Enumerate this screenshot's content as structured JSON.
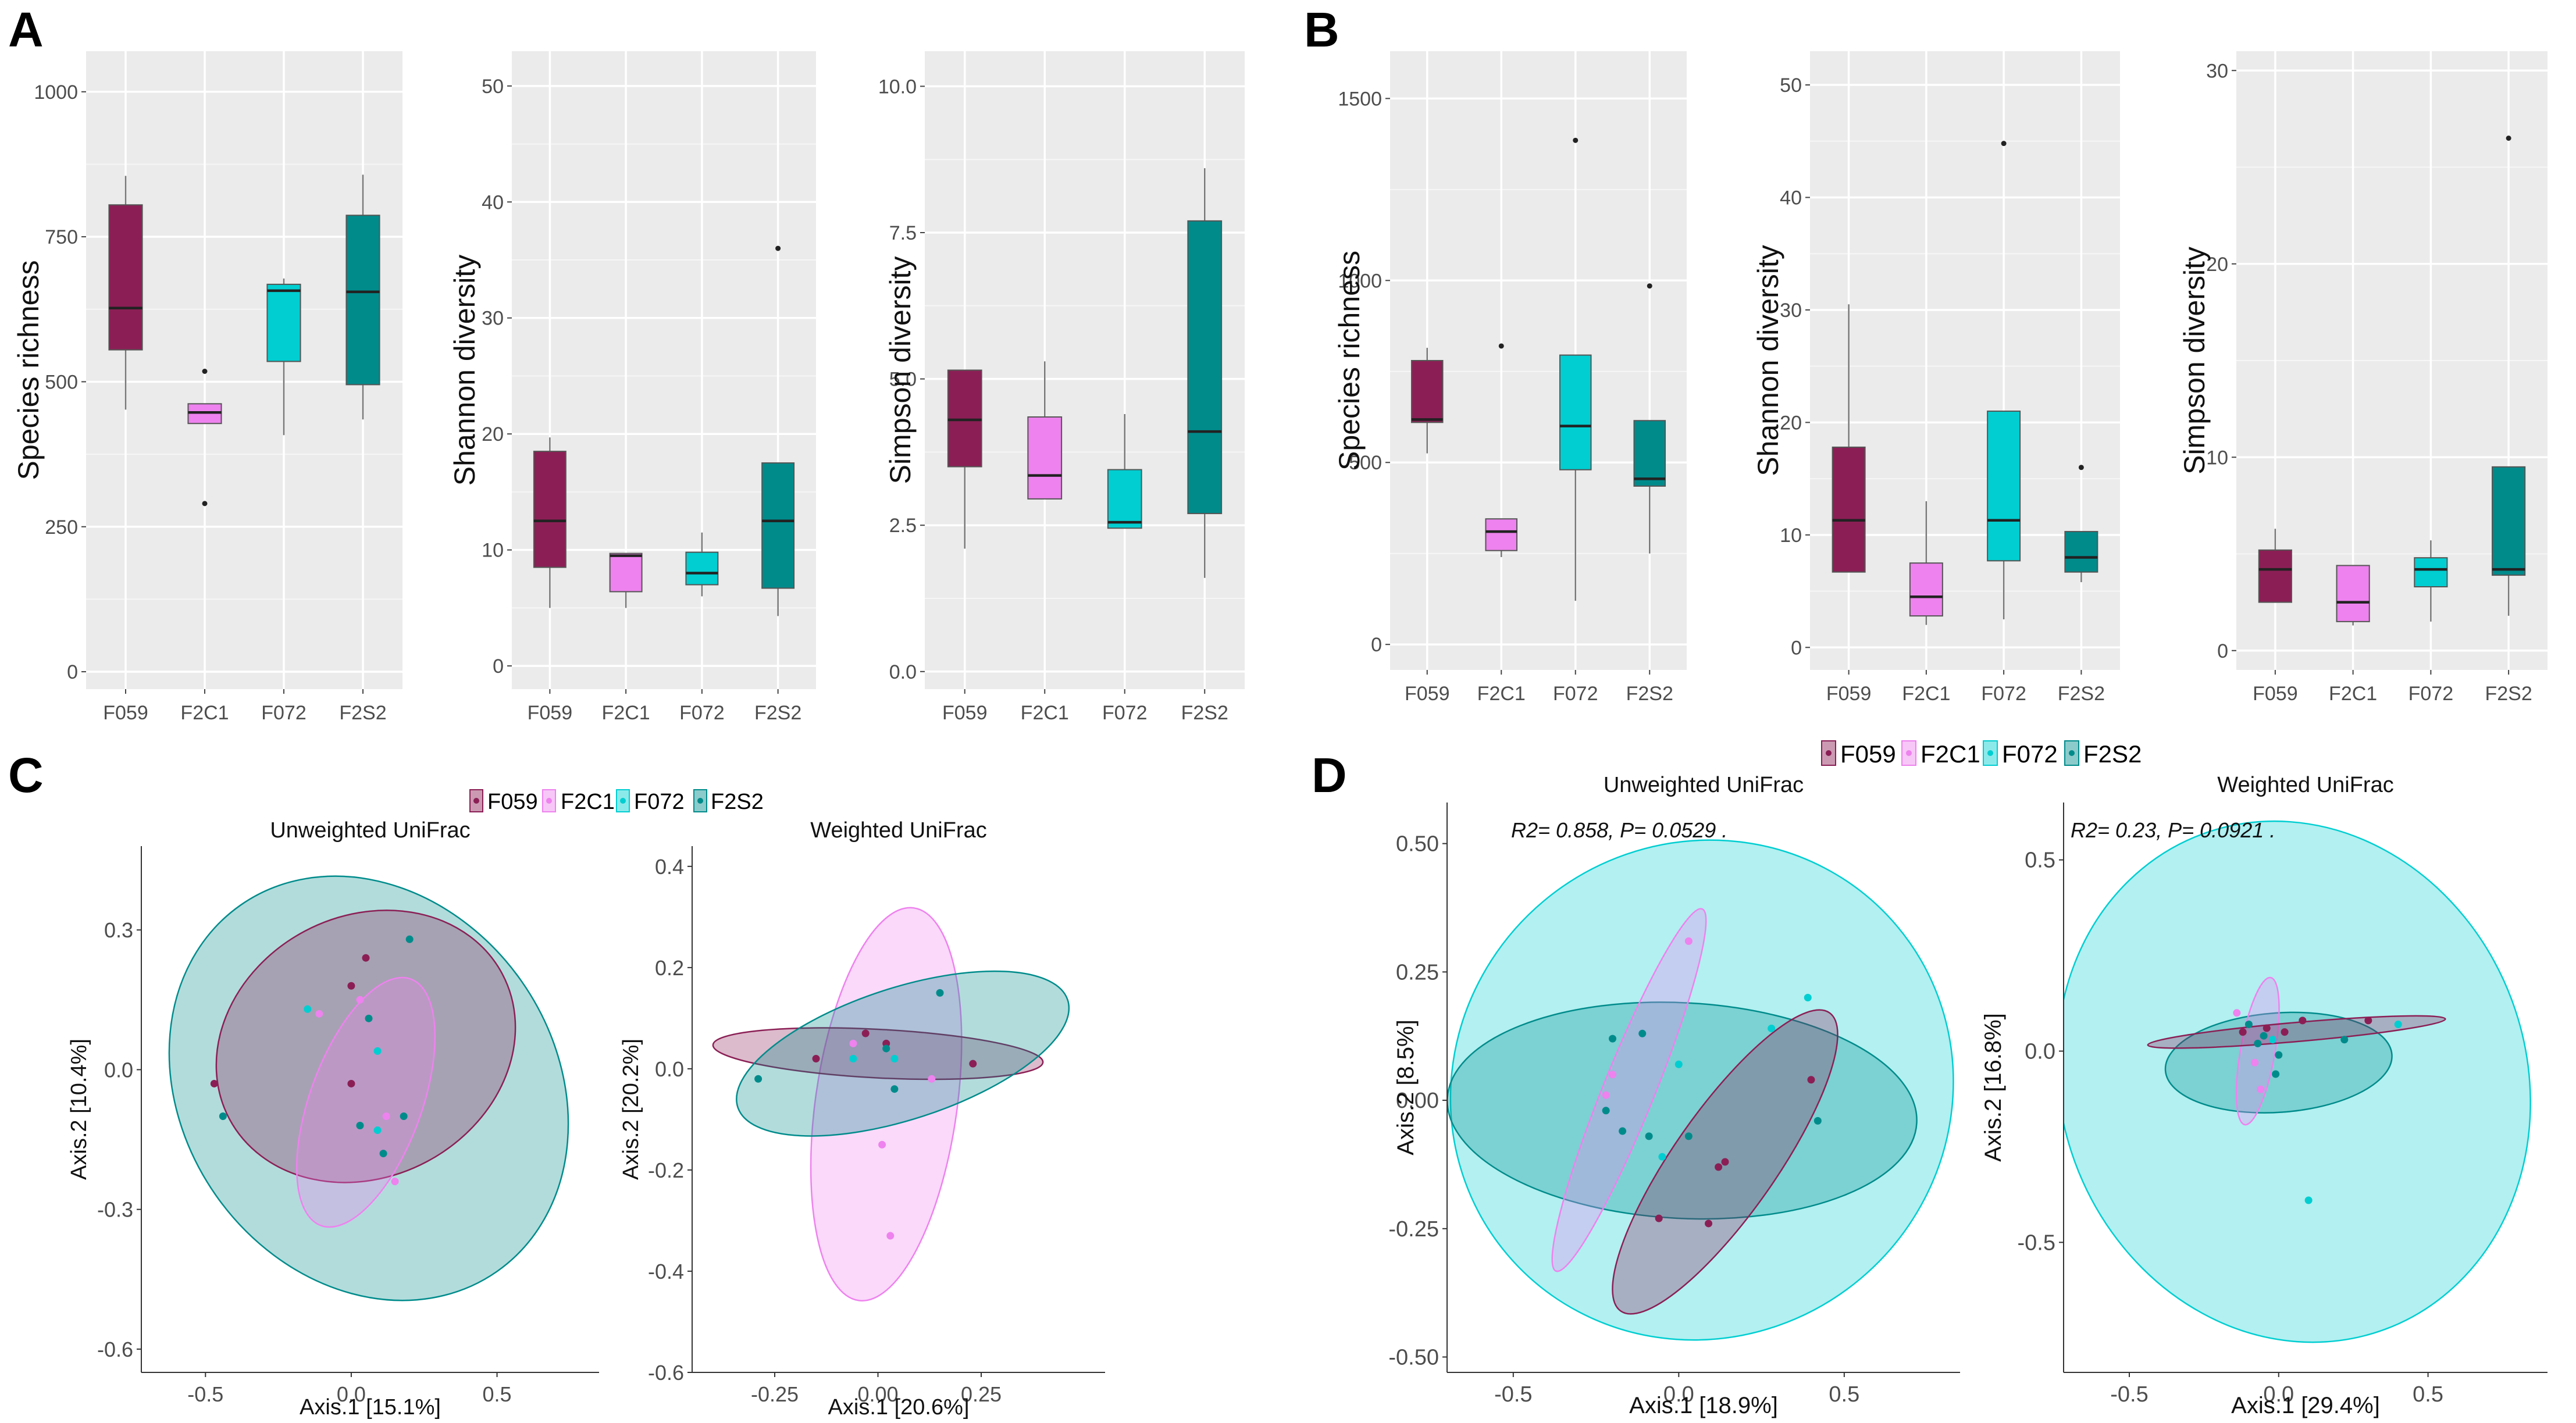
{
  "panel_letters": [
    "A",
    "B",
    "C",
    "D"
  ],
  "colors": {
    "F059": "#8b1f55",
    "F2C1": "#ee82ee",
    "F072": "#00ced1",
    "F2S2": "#008b8b"
  },
  "legend": {
    "C": [
      "F059",
      "F2C1",
      "F072",
      "F2S2"
    ],
    "D": [
      "F059",
      "F2C1",
      "F072",
      "F2S2"
    ]
  },
  "chart_data": [
    {
      "panel": "A",
      "type": "box",
      "title": "",
      "xlabel": "",
      "ylabel": "Species richness",
      "ylim": [
        -30,
        1070
      ],
      "yticks": [
        0,
        250,
        500,
        750,
        1000
      ],
      "ytick_labels": [
        "0",
        "250",
        "500",
        "750",
        "1000"
      ],
      "categories": [
        "F059",
        "F2C1",
        "F072",
        "F2S2"
      ],
      "boxes": [
        {
          "q1": 555,
          "median": 627,
          "q3": 805,
          "low": 452,
          "high": 855,
          "outliers": []
        },
        {
          "q1": 428,
          "median": 447,
          "q3": 462,
          "low": 428,
          "high": 462,
          "outliers": [
            518,
            290
          ]
        },
        {
          "q1": 535,
          "median": 657,
          "q3": 668,
          "low": 408,
          "high": 678,
          "outliers": []
        },
        {
          "q1": 495,
          "median": 655,
          "q3": 787,
          "low": 435,
          "high": 857,
          "outliers": []
        }
      ]
    },
    {
      "panel": "A",
      "type": "box",
      "title": "",
      "xlabel": "",
      "ylabel": "Shannon diversity",
      "ylim": [
        -2,
        53
      ],
      "yticks": [
        0,
        10,
        20,
        30,
        40,
        50
      ],
      "ytick_labels": [
        "0",
        "10",
        "20",
        "30",
        "40",
        "50"
      ],
      "categories": [
        "F059",
        "F2C1",
        "F072",
        "F2S2"
      ],
      "boxes": [
        {
          "q1": 8.5,
          "median": 12.5,
          "q3": 18.5,
          "low": 5,
          "high": 19.7,
          "outliers": []
        },
        {
          "q1": 6.4,
          "median": 9.5,
          "q3": 9.7,
          "low": 5,
          "high": 9.7,
          "outliers": []
        },
        {
          "q1": 7,
          "median": 8,
          "q3": 9.8,
          "low": 6,
          "high": 11.5,
          "outliers": []
        },
        {
          "q1": 6.7,
          "median": 12.5,
          "q3": 17.5,
          "low": 4.3,
          "high": 17.5,
          "outliers": [
            36
          ]
        }
      ]
    },
    {
      "panel": "A",
      "type": "box",
      "title": "",
      "xlabel": "",
      "ylabel": "Simpson diversity",
      "ylim": [
        -0.3,
        10.6
      ],
      "yticks": [
        0,
        2.5,
        5,
        7.5,
        10
      ],
      "ytick_labels": [
        "0.0",
        "2.5",
        "5.0",
        "7.5",
        "10.0"
      ],
      "categories": [
        "F059",
        "F2C1",
        "F072",
        "F2S2"
      ],
      "boxes": [
        {
          "q1": 3.5,
          "median": 4.3,
          "q3": 5.15,
          "low": 2.1,
          "high": 5.15,
          "outliers": []
        },
        {
          "q1": 2.95,
          "median": 3.35,
          "q3": 4.35,
          "low": 2.95,
          "high": 5.3,
          "outliers": []
        },
        {
          "q1": 2.45,
          "median": 2.55,
          "q3": 3.45,
          "low": 2.45,
          "high": 4.4,
          "outliers": []
        },
        {
          "q1": 2.7,
          "median": 4.1,
          "q3": 7.7,
          "low": 1.6,
          "high": 8.6,
          "outliers": []
        }
      ]
    },
    {
      "panel": "B",
      "type": "box",
      "title": "",
      "xlabel": "",
      "ylabel": "Species richness",
      "ylim": [
        -70,
        1630
      ],
      "yticks": [
        0,
        500,
        1000,
        1500
      ],
      "ytick_labels": [
        "0",
        "500",
        "1000",
        "1500"
      ],
      "categories": [
        "F059",
        "F2C1",
        "F072",
        "F2S2"
      ],
      "boxes": [
        {
          "q1": 610,
          "median": 618,
          "q3": 780,
          "low": 525,
          "high": 815,
          "outliers": []
        },
        {
          "q1": 258,
          "median": 310,
          "q3": 345,
          "low": 240,
          "high": 345,
          "outliers": [
            820
          ]
        },
        {
          "q1": 480,
          "median": 600,
          "q3": 795,
          "low": 120,
          "high": 795,
          "outliers": [
            1385
          ]
        },
        {
          "q1": 435,
          "median": 455,
          "q3": 615,
          "low": 250,
          "high": 615,
          "outliers": [
            985
          ]
        }
      ]
    },
    {
      "panel": "B",
      "type": "box",
      "title": "",
      "xlabel": "",
      "ylabel": "Shannon diversity",
      "ylim": [
        -2,
        53
      ],
      "yticks": [
        0,
        10,
        20,
        30,
        40,
        50
      ],
      "ytick_labels": [
        "0",
        "10",
        "20",
        "30",
        "40",
        "50"
      ],
      "categories": [
        "F059",
        "F2C1",
        "F072",
        "F2S2"
      ],
      "boxes": [
        {
          "q1": 6.7,
          "median": 11.3,
          "q3": 17.8,
          "low": 6.7,
          "high": 30.5,
          "outliers": []
        },
        {
          "q1": 2.8,
          "median": 4.5,
          "q3": 7.5,
          "low": 2,
          "high": 13,
          "outliers": []
        },
        {
          "q1": 7.7,
          "median": 11.3,
          "q3": 21,
          "low": 2.5,
          "high": 21,
          "outliers": [
            44.8
          ]
        },
        {
          "q1": 6.7,
          "median": 8,
          "q3": 10.3,
          "low": 5.8,
          "high": 10.3,
          "outliers": [
            16
          ]
        }
      ]
    },
    {
      "panel": "B",
      "type": "box",
      "title": "",
      "xlabel": "",
      "ylabel": "Simpson diversity",
      "ylim": [
        -1,
        31
      ],
      "yticks": [
        0,
        10,
        20,
        30
      ],
      "ytick_labels": [
        "0",
        "10",
        "20",
        "30"
      ],
      "categories": [
        "F059",
        "F2C1",
        "F072",
        "F2S2"
      ],
      "boxes": [
        {
          "q1": 2.5,
          "median": 4.2,
          "q3": 5.2,
          "low": 2.5,
          "high": 6.3,
          "outliers": []
        },
        {
          "q1": 1.5,
          "median": 2.5,
          "q3": 4.4,
          "low": 1.3,
          "high": 4.4,
          "outliers": []
        },
        {
          "q1": 3.3,
          "median": 4.2,
          "q3": 4.8,
          "low": 1.5,
          "high": 5.7,
          "outliers": []
        },
        {
          "q1": 3.9,
          "median": 4.2,
          "q3": 9.5,
          "low": 1.8,
          "high": 9.5,
          "outliers": [
            26.5
          ]
        }
      ]
    },
    {
      "panel": "C",
      "type": "scatter",
      "title": "Unweighted UniFrac",
      "xlabel": "Axis.1   [15.1%]",
      "ylabel": "Axis.2   [10.4%]",
      "xlim": [
        -0.72,
        0.85
      ],
      "ylim": [
        -0.65,
        0.48
      ],
      "xticks": [
        -0.5,
        0,
        0.5
      ],
      "xtick_labels": [
        "-0.5",
        "0.0",
        "0.5"
      ],
      "yticks": [
        -0.6,
        -0.3,
        0,
        0.3
      ],
      "ytick_labels": [
        "-0.6",
        "-0.3",
        "0.0",
        "0.3"
      ],
      "annotation": "",
      "ellipses": [
        {
          "group": "F2S2",
          "cx": 0.06,
          "cy": -0.04,
          "rx": 0.64,
          "ry": 0.48,
          "angle": 35
        },
        {
          "group": "F059",
          "cx": 0.05,
          "cy": 0.05,
          "rx": 0.53,
          "ry": 0.28,
          "angle": 28
        },
        {
          "group": "F2C1",
          "cx": 0.05,
          "cy": -0.07,
          "rx": 0.45,
          "ry": 0.12,
          "angle": 70
        }
      ],
      "points": [
        {
          "group": "F059",
          "x": -0.47,
          "y": -0.03
        },
        {
          "group": "F059",
          "x": 0,
          "y": 0.18
        },
        {
          "group": "F059",
          "x": 0.05,
          "y": 0.24
        },
        {
          "group": "F059",
          "x": 0,
          "y": -0.03
        },
        {
          "group": "F2C1",
          "x": -0.11,
          "y": 0.12
        },
        {
          "group": "F2C1",
          "x": 0.03,
          "y": 0.15
        },
        {
          "group": "F2C1",
          "x": 0.12,
          "y": -0.1
        },
        {
          "group": "F2C1",
          "x": 0.15,
          "y": -0.24
        },
        {
          "group": "F072",
          "x": -0.15,
          "y": 0.13
        },
        {
          "group": "F072",
          "x": 0.09,
          "y": 0.04
        },
        {
          "group": "F072",
          "x": 0.09,
          "y": -0.13
        },
        {
          "group": "F2S2",
          "x": -0.44,
          "y": -0.1
        },
        {
          "group": "F2S2",
          "x": 0.2,
          "y": 0.28
        },
        {
          "group": "F2S2",
          "x": 0.06,
          "y": 0.11
        },
        {
          "group": "F2S2",
          "x": 0.03,
          "y": -0.12
        },
        {
          "group": "F2S2",
          "x": 0.18,
          "y": -0.1
        },
        {
          "group": "F2S2",
          "x": 0.11,
          "y": -0.18
        }
      ]
    },
    {
      "panel": "C",
      "type": "scatter",
      "title": "Weighted UniFrac",
      "xlabel": "Axis.1   [20.6%]",
      "ylabel": "Axis.2   [20.2%]",
      "xlim": [
        -0.45,
        0.55
      ],
      "ylim": [
        -0.6,
        0.44
      ],
      "xticks": [
        -0.25,
        0,
        0.25
      ],
      "xtick_labels": [
        "-0.25",
        "0.00",
        "0.25"
      ],
      "yticks": [
        -0.6,
        -0.4,
        -0.2,
        0,
        0.2,
        0.4
      ],
      "ytick_labels": [
        "-0.6",
        "-0.4",
        "-0.2",
        "0.0",
        "0.2",
        "0.4"
      ],
      "annotation": "",
      "ellipses": [
        {
          "group": "F2C1",
          "cx": 0.02,
          "cy": -0.07,
          "rx": 0.48,
          "ry": 0.14,
          "angle": 82
        },
        {
          "group": "F059",
          "cx": 0,
          "cy": 0.03,
          "rx": 0.4,
          "ry": 0.048,
          "angle": -3
        },
        {
          "group": "F2S2",
          "cx": 0.06,
          "cy": 0.03,
          "rx": 0.42,
          "ry": 0.13,
          "angle": 18
        }
      ],
      "points": [
        {
          "group": "F059",
          "x": -0.15,
          "y": 0.02
        },
        {
          "group": "F059",
          "x": -0.03,
          "y": 0.07
        },
        {
          "group": "F059",
          "x": 0.02,
          "y": 0.05
        },
        {
          "group": "F059",
          "x": 0.23,
          "y": 0.01
        },
        {
          "group": "F2C1",
          "x": -0.06,
          "y": 0.05
        },
        {
          "group": "F2C1",
          "x": 0.01,
          "y": -0.15
        },
        {
          "group": "F2C1",
          "x": 0.03,
          "y": -0.33
        },
        {
          "group": "F2C1",
          "x": 0.13,
          "y": -0.02
        },
        {
          "group": "F072",
          "x": -0.06,
          "y": 0.02
        },
        {
          "group": "F072",
          "x": 0.04,
          "y": 0.02
        },
        {
          "group": "F2S2",
          "x": -0.29,
          "y": -0.02
        },
        {
          "group": "F2S2",
          "x": 0.15,
          "y": 0.15
        },
        {
          "group": "F2S2",
          "x": 0.02,
          "y": 0.04
        },
        {
          "group": "F2S2",
          "x": 0.04,
          "y": -0.04
        }
      ]
    },
    {
      "panel": "D",
      "type": "scatter",
      "title": "Unweighted UniFrac",
      "xlabel": "Axis.1   [18.9%]",
      "ylabel": "Axis.2   [8.5%]",
      "xlim": [
        -0.7,
        0.85
      ],
      "ylim": [
        -0.53,
        0.58
      ],
      "xticks": [
        -0.5,
        0,
        0.5
      ],
      "xtick_labels": [
        "-0.5",
        "0.0",
        "0.5"
      ],
      "yticks": [
        -0.5,
        -0.25,
        0,
        0.25,
        0.5
      ],
      "ytick_labels": [
        "-0.50",
        "-0.25",
        "0.00",
        "0.25",
        "0.50"
      ],
      "annotation": "R2= 0.858, P= 0.0529 .",
      "ellipses": [
        {
          "group": "F072",
          "cx": 0.07,
          "cy": 0.02,
          "rx": 0.77,
          "ry": 0.48,
          "angle": 40
        },
        {
          "group": "F2S2",
          "cx": 0.01,
          "cy": -0.02,
          "rx": 0.71,
          "ry": 0.21,
          "angle": -3
        },
        {
          "group": "F059",
          "cx": 0.14,
          "cy": -0.12,
          "rx": 0.55,
          "ry": 0.1,
          "angle": 55
        },
        {
          "group": "F2C1",
          "cx": -0.15,
          "cy": 0.02,
          "rx": 0.59,
          "ry": 0.05,
          "angle": 68
        }
      ],
      "points": [
        {
          "group": "F059",
          "x": -0.06,
          "y": -0.23
        },
        {
          "group": "F059",
          "x": 0.09,
          "y": -0.24
        },
        {
          "group": "F059",
          "x": 0.12,
          "y": -0.13
        },
        {
          "group": "F059",
          "x": 0.14,
          "y": -0.12
        },
        {
          "group": "F059",
          "x": 0.4,
          "y": 0.04
        },
        {
          "group": "F2C1",
          "x": 0.03,
          "y": 0.31
        },
        {
          "group": "F2C1",
          "x": -0.2,
          "y": 0.05
        },
        {
          "group": "F2C1",
          "x": -0.22,
          "y": 0.01
        },
        {
          "group": "F072",
          "x": 0,
          "y": 0.07
        },
        {
          "group": "F072",
          "x": 0.39,
          "y": 0.2
        },
        {
          "group": "F072",
          "x": 0.28,
          "y": 0.14
        },
        {
          "group": "F072",
          "x": -0.05,
          "y": -0.11
        },
        {
          "group": "F2S2",
          "x": -0.2,
          "y": 0.12
        },
        {
          "group": "F2S2",
          "x": -0.11,
          "y": 0.13
        },
        {
          "group": "F2S2",
          "x": -0.22,
          "y": -0.02
        },
        {
          "group": "F2S2",
          "x": -0.17,
          "y": -0.06
        },
        {
          "group": "F2S2",
          "x": -0.09,
          "y": -0.07
        },
        {
          "group": "F2S2",
          "x": 0.03,
          "y": -0.07
        },
        {
          "group": "F2S2",
          "x": 0.42,
          "y": -0.04
        }
      ]
    },
    {
      "panel": "D",
      "type": "scatter",
      "title": "Weighted UniFrac",
      "xlabel": "Axis.1   [29.4%]",
      "ylabel": "Axis.2   [16.8%]",
      "xlim": [
        -0.72,
        0.9
      ],
      "ylim": [
        -0.84,
        0.65
      ],
      "xticks": [
        -0.5,
        0,
        0.5
      ],
      "xtick_labels": [
        "-0.5",
        "0.0",
        "0.5"
      ],
      "yticks": [
        -0.5,
        0,
        0.5
      ],
      "ytick_labels": [
        "-0.5",
        "0.0",
        "0.5"
      ],
      "annotation": "R2= 0.23, P= 0.0921 .",
      "ellipses": [
        {
          "group": "F072",
          "cx": 0.05,
          "cy": -0.08,
          "rx": 0.78,
          "ry": 0.69,
          "angle": 20
        },
        {
          "group": "F2S2",
          "cx": 0,
          "cy": -0.03,
          "rx": 0.38,
          "ry": 0.13,
          "angle": 4
        },
        {
          "group": "F2C1",
          "cx": -0.07,
          "cy": 0,
          "rx": 0.25,
          "ry": 0.045,
          "angle": 80
        },
        {
          "group": "F059",
          "cx": 0.06,
          "cy": 0.05,
          "rx": 0.5,
          "ry": 0.025,
          "angle": 5
        }
      ],
      "points": [
        {
          "group": "F059",
          "x": -0.12,
          "y": 0.05
        },
        {
          "group": "F059",
          "x": -0.04,
          "y": 0.06
        },
        {
          "group": "F059",
          "x": 0.02,
          "y": 0.05
        },
        {
          "group": "F059",
          "x": 0.08,
          "y": 0.08
        },
        {
          "group": "F059",
          "x": 0.3,
          "y": 0.08
        },
        {
          "group": "F2C1",
          "x": -0.14,
          "y": 0.1
        },
        {
          "group": "F2C1",
          "x": -0.08,
          "y": -0.03
        },
        {
          "group": "F2C1",
          "x": -0.06,
          "y": -0.1
        },
        {
          "group": "F072",
          "x": 0.1,
          "y": -0.39
        },
        {
          "group": "F072",
          "x": 0.4,
          "y": 0.07
        },
        {
          "group": "F072",
          "x": -0.02,
          "y": 0.03
        },
        {
          "group": "F2S2",
          "x": -0.1,
          "y": 0.07
        },
        {
          "group": "F2S2",
          "x": -0.05,
          "y": 0.04
        },
        {
          "group": "F2S2",
          "x": 0,
          "y": -0.01
        },
        {
          "group": "F2S2",
          "x": -0.01,
          "y": -0.06
        },
        {
          "group": "F2S2",
          "x": 0.22,
          "y": 0.03
        },
        {
          "group": "F2S2",
          "x": -0.07,
          "y": 0.02
        }
      ]
    }
  ]
}
